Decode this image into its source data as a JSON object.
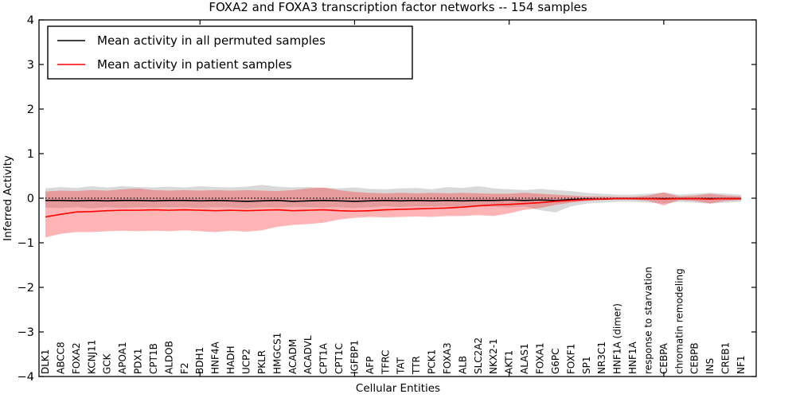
{
  "chart_data": {
    "type": "line",
    "title": "FOXA2 and FOXA3 transcription factor networks -- 154 samples",
    "xlabel": "Cellular Entities",
    "ylabel": "Inferred Activity",
    "ylim": [
      -4,
      4
    ],
    "yticks": [
      -4,
      -3,
      -2,
      -1,
      0,
      1,
      2,
      3,
      4
    ],
    "xticks_at_index": [
      10,
      20,
      30,
      40
    ],
    "legend_position": "upper left",
    "grid": false,
    "zero_line": {
      "y": 0,
      "style": "dotted",
      "color": "#000000"
    },
    "categories": [
      "DLK1",
      "ABCC8",
      "FOXA2",
      "KCNJ11",
      "GCK",
      "APOA1",
      "PDX1",
      "CPT1B",
      "ALDOB",
      "F2",
      "BDH1",
      "HNF4A",
      "HADH",
      "UCP2",
      "PKLR",
      "HMGCS1",
      "ACADM",
      "ACADVL",
      "CPT1A",
      "CPT1C",
      "IGFBP1",
      "AFP",
      "TFRC",
      "TAT",
      "TTR",
      "PCK1",
      "FOXA3",
      "ALB",
      "SLC2A2",
      "NKX2-1",
      "AKT1",
      "ALAS1",
      "FOXA1",
      "G6PC",
      "FOXF1",
      "SP1",
      "NR3C1",
      "HNF1A (dimer)",
      "HNF1A",
      "response to starvation",
      "CEBPA",
      "chromatin remodeling",
      "CEBPB",
      "INS",
      "CREB1",
      "NF1"
    ],
    "series": [
      {
        "name": "Mean activity in all permuted samples",
        "color": "#000000",
        "values": [
          -0.05,
          -0.05,
          -0.06,
          -0.05,
          -0.06,
          -0.05,
          -0.05,
          -0.06,
          -0.05,
          -0.05,
          -0.06,
          -0.05,
          -0.06,
          -0.07,
          -0.06,
          -0.05,
          -0.07,
          -0.06,
          -0.05,
          -0.06,
          -0.07,
          -0.06,
          -0.05,
          -0.06,
          -0.05,
          -0.06,
          -0.05,
          -0.06,
          -0.05,
          -0.05,
          -0.04,
          -0.05,
          -0.04,
          -0.05,
          -0.03,
          -0.02,
          -0.02,
          -0.01,
          -0.01,
          -0.01,
          -0.01,
          -0.01,
          -0.01,
          -0.01,
          -0.01,
          -0.01
        ]
      },
      {
        "name": "Mean activity in patient samples",
        "color": "#ff0000",
        "values": [
          -0.42,
          -0.36,
          -0.31,
          -0.3,
          -0.28,
          -0.27,
          -0.27,
          -0.26,
          -0.27,
          -0.26,
          -0.27,
          -0.28,
          -0.27,
          -0.28,
          -0.27,
          -0.26,
          -0.28,
          -0.27,
          -0.26,
          -0.28,
          -0.29,
          -0.28,
          -0.26,
          -0.25,
          -0.24,
          -0.23,
          -0.22,
          -0.2,
          -0.17,
          -0.15,
          -0.14,
          -0.12,
          -0.1,
          -0.07,
          -0.05,
          -0.03,
          -0.02,
          -0.01,
          -0.01,
          -0.01,
          -0.02,
          -0.01,
          -0.01,
          -0.02,
          -0.01,
          -0.01
        ]
      }
    ],
    "bands": [
      {
        "name": "permuted samples range",
        "fill": "rgba(120,120,120,0.28)",
        "upper": [
          0.22,
          0.25,
          0.23,
          0.27,
          0.24,
          0.27,
          0.25,
          0.24,
          0.26,
          0.24,
          0.27,
          0.25,
          0.24,
          0.26,
          0.3,
          0.26,
          0.24,
          0.25,
          0.23,
          0.22,
          0.24,
          0.21,
          0.2,
          0.22,
          0.23,
          0.2,
          0.25,
          0.23,
          0.27,
          0.22,
          0.2,
          0.18,
          0.21,
          0.18,
          0.16,
          0.12,
          0.1,
          0.08,
          0.08,
          0.1,
          0.13,
          0.08,
          0.1,
          0.12,
          0.1,
          0.08
        ],
        "lower": [
          -0.21,
          -0.22,
          -0.2,
          -0.23,
          -0.2,
          -0.22,
          -0.2,
          -0.21,
          -0.2,
          -0.2,
          -0.22,
          -0.2,
          -0.21,
          -0.23,
          -0.2,
          -0.21,
          -0.2,
          -0.2,
          -0.21,
          -0.2,
          -0.22,
          -0.2,
          -0.18,
          -0.2,
          -0.18,
          -0.19,
          -0.18,
          -0.2,
          -0.18,
          -0.19,
          -0.21,
          -0.18,
          -0.27,
          -0.32,
          -0.18,
          -0.12,
          -0.1,
          -0.08,
          -0.08,
          -0.1,
          -0.12,
          -0.08,
          -0.1,
          -0.12,
          -0.1,
          -0.08
        ]
      },
      {
        "name": "patient samples range",
        "fill": "rgba(255,30,30,0.33)",
        "upper": [
          0.15,
          0.17,
          0.16,
          0.18,
          0.17,
          0.2,
          0.22,
          0.18,
          0.17,
          0.18,
          0.17,
          0.18,
          0.17,
          0.18,
          0.17,
          0.16,
          0.18,
          0.22,
          0.24,
          0.18,
          0.14,
          0.12,
          0.11,
          0.12,
          0.11,
          0.12,
          0.11,
          0.12,
          0.11,
          0.1,
          0.1,
          0.12,
          0.1,
          0.08,
          0.06,
          0.04,
          0.04,
          0.03,
          0.03,
          0.06,
          0.13,
          0.04,
          0.06,
          0.1,
          0.06,
          0.04
        ],
        "lower": [
          -0.88,
          -0.8,
          -0.76,
          -0.76,
          -0.74,
          -0.73,
          -0.74,
          -0.73,
          -0.74,
          -0.72,
          -0.74,
          -0.76,
          -0.73,
          -0.75,
          -0.72,
          -0.64,
          -0.6,
          -0.58,
          -0.55,
          -0.48,
          -0.44,
          -0.42,
          -0.43,
          -0.42,
          -0.41,
          -0.42,
          -0.4,
          -0.4,
          -0.38,
          -0.4,
          -0.34,
          -0.26,
          -0.22,
          -0.15,
          -0.1,
          -0.06,
          -0.04,
          -0.03,
          -0.03,
          -0.06,
          -0.16,
          -0.04,
          -0.06,
          -0.12,
          -0.06,
          -0.04
        ]
      }
    ]
  }
}
